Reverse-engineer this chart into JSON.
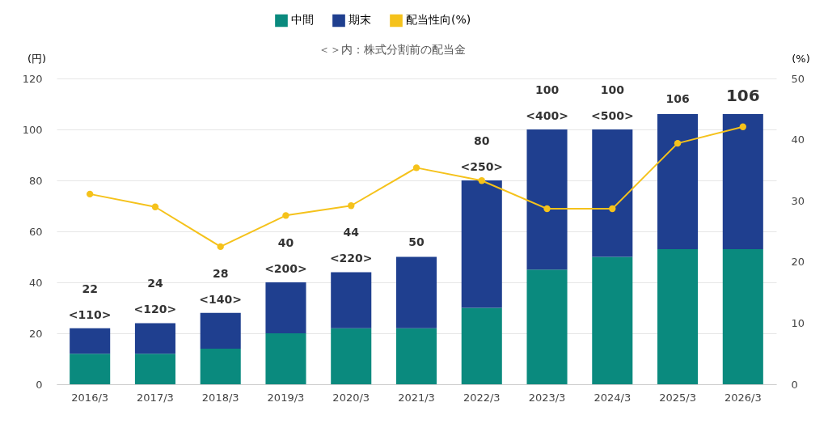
{
  "chart_data": {
    "type": "bar",
    "subtitle": "＜＞内：株式分割前の配当金",
    "ylabel": "(円)",
    "y2label": "(%)",
    "categories": [
      "2016/3",
      "2017/3",
      "2018/3",
      "2019/3",
      "2020/3",
      "2021/3",
      "2022/3",
      "2023/3",
      "2024/3",
      "2025/3",
      "2026/3"
    ],
    "stacked": true,
    "series": [
      {
        "name": "中間",
        "color": "#0a8a7e",
        "values": [
          12,
          12,
          14,
          20,
          22,
          22,
          30,
          45,
          50,
          53,
          53
        ]
      },
      {
        "name": "期末",
        "color": "#1f3f8f",
        "values": [
          10,
          12,
          14,
          20,
          22,
          28,
          50,
          55,
          50,
          53,
          53
        ]
      },
      {
        "name": "配当性向(%)",
        "type": "line",
        "axis": "y2",
        "color": "#f5c21b",
        "values": [
          31.1,
          29.0,
          22.5,
          27.6,
          29.2,
          35.4,
          33.3,
          28.7,
          28.7,
          39.4,
          42.1
        ]
      }
    ],
    "totals": [
      "22",
      "24",
      "28",
      "40",
      "44",
      "50",
      "80",
      "100",
      "100",
      "106",
      "106"
    ],
    "annotations": [
      {
        "text": "<110>",
        "x": "2016/3",
        "y": 22
      },
      {
        "text": "<120>",
        "x": "2017/3",
        "y": 24
      },
      {
        "text": "<140>",
        "x": "2018/3",
        "y": 28
      },
      {
        "text": "<200>",
        "x": "2019/3",
        "y": 40
      },
      {
        "text": "<220>",
        "x": "2020/3",
        "y": 44
      },
      {
        "text": "<250>",
        "x": "2022/3",
        "y": 80
      },
      {
        "text": "<400>",
        "x": "2023/3",
        "y": 100
      },
      {
        "text": "<500>",
        "x": "2024/3",
        "y": 100
      }
    ],
    "ylim": [
      0,
      120
    ],
    "yticks": [
      0,
      20,
      40,
      60,
      80,
      100,
      120
    ],
    "y2lim": [
      0,
      50
    ],
    "y2ticks": [
      0,
      10,
      20,
      30,
      40,
      50
    ],
    "grid": true,
    "legend": "top",
    "marker": "circle"
  }
}
